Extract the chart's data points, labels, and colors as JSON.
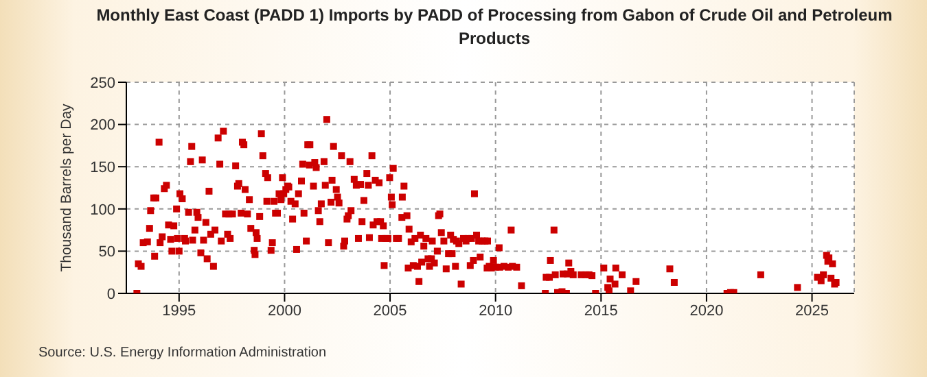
{
  "chart_data": {
    "type": "scatter",
    "title": "Monthly East Coast (PADD 1) Imports by PADD of Processing from Gabon of Crude Oil and Petroleum Products",
    "ylabel": "Thousand Barrels per Day",
    "annotations": [
      "Source: U.S. Energy Information Administration"
    ],
    "xlim": [
      1992.5,
      2027
    ],
    "xticks": [
      1995,
      2000,
      2005,
      2010,
      2015,
      2020,
      2025
    ],
    "ylim": [
      0,
      250
    ],
    "yticks": [
      0,
      50,
      100,
      150,
      200,
      250
    ],
    "grid": true,
    "marker": "square",
    "series": [
      {
        "color": "#cc0000",
        "x": [
          1993.0,
          1993.07,
          1993.2,
          1993.3,
          1993.5,
          1993.6,
          1993.65,
          1993.8,
          1993.84,
          1993.9,
          1994.05,
          1994.1,
          1994.2,
          1994.3,
          1994.4,
          1994.5,
          1994.6,
          1994.66,
          1994.75,
          1994.88,
          1994.92,
          1995.0,
          1995.04,
          1995.15,
          1995.26,
          1995.3,
          1995.45,
          1995.54,
          1995.6,
          1995.64,
          1995.75,
          1995.84,
          1995.9,
          1996.03,
          1996.1,
          1996.16,
          1996.27,
          1996.33,
          1996.42,
          1996.5,
          1996.63,
          1996.7,
          1996.85,
          1996.93,
          1997.0,
          1997.1,
          1997.2,
          1997.3,
          1997.36,
          1997.42,
          1997.53,
          1997.68,
          1997.77,
          1997.83,
          1997.94,
          1998.0,
          1998.07,
          1998.13,
          1998.24,
          1998.33,
          1998.4,
          1998.56,
          1998.6,
          1998.65,
          1998.7,
          1998.82,
          1998.9,
          1998.97,
          1999.1,
          1999.2,
          1999.16,
          1999.36,
          1999.42,
          1999.5,
          1999.57,
          1999.66,
          1999.74,
          1999.83,
          1999.9,
          1999.96,
          2000.06,
          2000.15,
          2000.2,
          2000.3,
          2000.38,
          2000.5,
          2000.57,
          2000.66,
          2000.8,
          2000.86,
          2000.92,
          2001.03,
          2001.1,
          2001.2,
          2001.18,
          2001.37,
          2001.43,
          2001.5,
          2001.6,
          2001.67,
          2001.74,
          2001.87,
          2001.93,
          2002.0,
          2002.08,
          2002.2,
          2002.25,
          2002.32,
          2002.45,
          2002.51,
          2002.58,
          2002.7,
          2002.8,
          2002.85,
          2002.96,
          2003.02,
          2003.1,
          2003.15,
          2003.3,
          2003.4,
          2003.5,
          2003.6,
          2003.67,
          2003.76,
          2003.9,
          2003.97,
          2004.02,
          2004.14,
          2004.2,
          2004.3,
          2004.38,
          2004.48,
          2004.55,
          2004.68,
          2004.6,
          2004.8,
          2004.72,
          2004.9,
          2004.98,
          2005.06,
          2005.1,
          2005.15,
          2005.3,
          2005.4,
          2005.58,
          2005.66,
          2005.56,
          2005.8,
          2005.9,
          2005.86,
          2006.0,
          2006.1,
          2006.18,
          2006.3,
          2006.37,
          2006.44,
          2006.5,
          2006.6,
          2006.7,
          2006.8,
          2006.87,
          2006.96,
          2007.0,
          2007.1,
          2007.24,
          2007.3,
          2007.36,
          2007.43,
          2007.55,
          2007.66,
          2007.77,
          2007.87,
          2007.94,
          2008.0,
          2008.1,
          2008.15,
          2008.26,
          2008.37,
          2008.48,
          2008.6,
          2008.7,
          2008.8,
          2008.86,
          2008.95,
          2009.0,
          2009.1,
          2009.27,
          2009.2,
          2009.36,
          2009.5,
          2009.6,
          2009.7,
          2009.62,
          2009.8,
          2009.9,
          2010.0,
          2010.17,
          2010.2,
          2010.4,
          2010.6,
          2010.74,
          2010.8,
          2011.0,
          2011.23,
          2012.36,
          2012.4,
          2012.55,
          2012.6,
          2012.77,
          2012.83,
          2012.94,
          2013.15,
          2013.2,
          2013.36,
          2013.4,
          2013.47,
          2013.57,
          2013.68,
          2014.06,
          2014.28,
          2014.43,
          2014.57,
          2014.74,
          2015.13,
          2015.32,
          2015.43,
          2015.38,
          2015.66,
          2015.7,
          2016.0,
          2016.4,
          2016.66,
          2018.26,
          2018.47,
          2020.97,
          2021.14,
          2021.29,
          2022.57,
          2024.31,
          2025.26,
          2025.43,
          2025.54,
          2025.69,
          2025.75,
          2025.8,
          2025.97,
          2025.9,
          2026.07,
          2026.14
        ],
        "values": [
          0,
          35,
          32,
          60,
          61,
          77,
          98,
          113,
          44,
          113,
          179,
          60,
          67,
          124,
          128,
          81,
          64,
          50,
          80,
          100,
          65,
          50,
          118,
          112,
          65,
          62,
          96,
          156,
          174,
          63,
          75,
          96,
          90,
          48,
          158,
          63,
          84,
          41,
          121,
          70,
          32,
          75,
          184,
          153,
          62,
          192,
          94,
          70,
          94,
          65,
          94,
          151,
          127,
          130,
          95,
          179,
          176,
          123,
          94,
          111,
          77,
          51,
          46,
          72,
          65,
          91,
          189,
          163,
          142,
          137,
          109,
          51,
          60,
          109,
          95,
          95,
          118,
          111,
          137,
          118,
          123,
          127,
          126,
          109,
          88,
          106,
          52,
          118,
          133,
          153,
          95,
          62,
          176,
          176,
          152,
          127,
          155,
          149,
          98,
          85,
          106,
          156,
          128,
          206,
          60,
          108,
          134,
          174,
          123,
          114,
          107,
          163,
          56,
          62,
          88,
          92,
          156,
          98,
          135,
          128,
          65,
          129,
          85,
          110,
          142,
          128,
          66,
          163,
          81,
          134,
          85,
          131,
          85,
          80,
          65,
          65,
          33,
          65,
          137,
          114,
          105,
          148,
          65,
          65,
          114,
          127,
          90,
          92,
          76,
          30,
          61,
          33,
          65,
          32,
          14,
          69,
          37,
          56,
          65,
          41,
          32,
          41,
          62,
          36,
          50,
          92,
          94,
          72,
          62,
          29,
          47,
          69,
          47,
          64,
          32,
          62,
          59,
          11,
          65,
          62,
          65,
          33,
          65,
          39,
          118,
          69,
          43,
          62,
          62,
          62,
          30,
          32,
          62,
          30,
          39,
          31,
          54,
          31,
          32,
          31,
          75,
          32,
          31,
          9,
          0,
          19,
          19,
          39,
          75,
          22,
          1,
          2,
          23,
          0,
          23,
          36,
          26,
          22,
          22,
          22,
          22,
          21,
          0,
          30,
          7,
          17,
          3,
          11,
          30,
          22,
          3,
          14,
          29,
          13,
          0,
          1,
          1,
          22,
          7,
          19,
          15,
          22,
          45,
          38,
          42,
          35,
          18,
          11,
          13
        ]
      }
    ]
  }
}
